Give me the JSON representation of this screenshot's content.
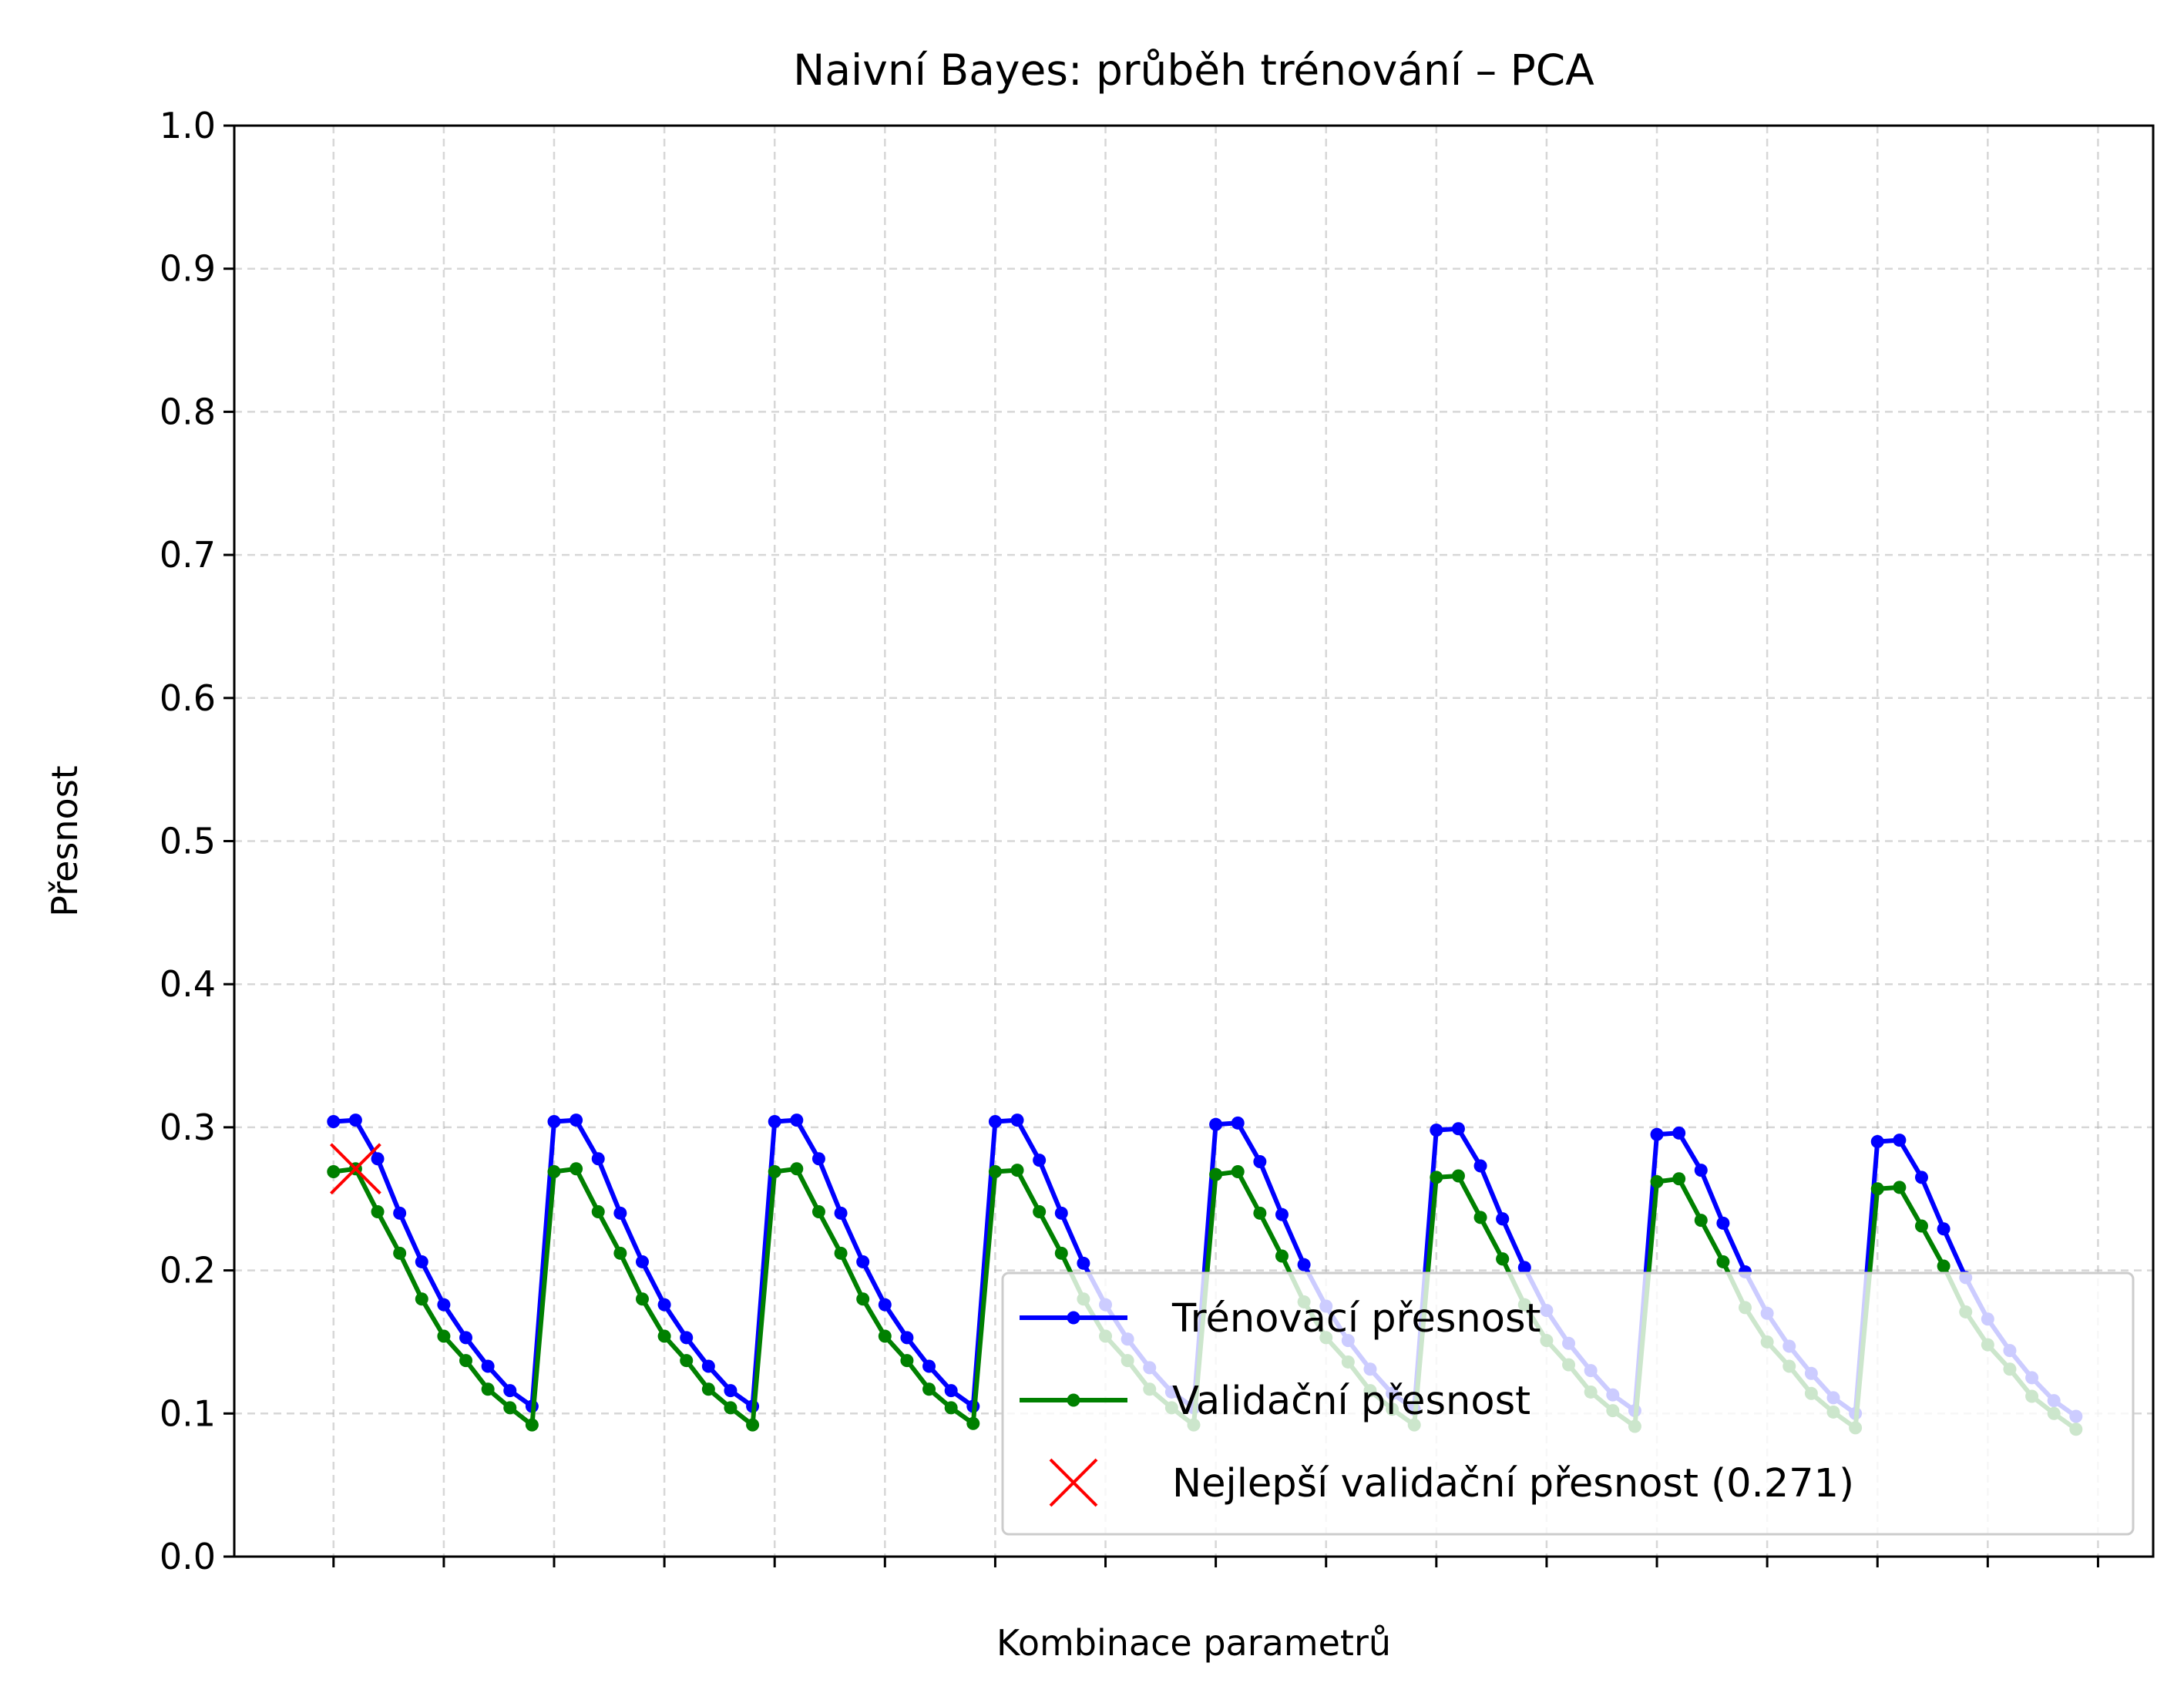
{
  "chart_data": {
    "type": "line",
    "title": "Naivní Bayes: průběh trénování – PCA",
    "xlabel": "Kombinace parametrů",
    "ylabel": "Přesnost",
    "ylim": [
      0.0,
      1.0
    ],
    "yticks": [
      "0.0",
      "0.1",
      "0.2",
      "0.3",
      "0.4",
      "0.5",
      "0.6",
      "0.7",
      "0.8",
      "0.9",
      "1.0"
    ],
    "grid": true,
    "legend_placement": "lower-right",
    "x": [
      0,
      1,
      2,
      3,
      4,
      5,
      6,
      7,
      8,
      9,
      10,
      11,
      12,
      13,
      14,
      15,
      16,
      17,
      18,
      19,
      20,
      21,
      22,
      23,
      24,
      25,
      26,
      27,
      28,
      29,
      30,
      31,
      32,
      33,
      34,
      35,
      36,
      37,
      38,
      39,
      40,
      41,
      42,
      43,
      44,
      45,
      46,
      47,
      48,
      49,
      50,
      51,
      52,
      53,
      53,
      54,
      55,
      56,
      57,
      58,
      59,
      60,
      61,
      62,
      63,
      64,
      65,
      66,
      67,
      68,
      69,
      70,
      71,
      72,
      73,
      74,
      75,
      76,
      77,
      78,
      79
    ],
    "series": [
      {
        "name": "Trénovací přesnost",
        "color": "#0000ff",
        "values": [
          0.304,
          0.305,
          0.278,
          0.24,
          0.206,
          0.176,
          0.153,
          0.133,
          0.116,
          0.105,
          0.304,
          0.305,
          0.278,
          0.24,
          0.206,
          0.176,
          0.153,
          0.133,
          0.116,
          0.105,
          0.304,
          0.305,
          0.278,
          0.24,
          0.206,
          0.176,
          0.153,
          0.133,
          0.116,
          0.105,
          0.304,
          0.305,
          0.277,
          0.24,
          0.205,
          0.176,
          0.152,
          0.132,
          0.115,
          0.104,
          0.302,
          0.303,
          0.276,
          0.239,
          0.204,
          0.175,
          0.151,
          0.131,
          0.114,
          0.103,
          0.298,
          0.299,
          0.273,
          0.236,
          0.236,
          0.202,
          0.172,
          0.149,
          0.13,
          0.113,
          0.102,
          0.295,
          0.296,
          0.27,
          0.233,
          0.199,
          0.17,
          0.147,
          0.128,
          0.111,
          0.1,
          0.29,
          0.291,
          0.265,
          0.229,
          0.195,
          0.166,
          0.144,
          0.125,
          0.109,
          0.098
        ]
      },
      {
        "name": "Validační přesnost",
        "color": "#008000",
        "values": [
          0.269,
          0.271,
          0.241,
          0.212,
          0.18,
          0.154,
          0.137,
          0.117,
          0.104,
          0.092,
          0.269,
          0.271,
          0.241,
          0.212,
          0.18,
          0.154,
          0.137,
          0.117,
          0.104,
          0.092,
          0.269,
          0.271,
          0.241,
          0.212,
          0.18,
          0.154,
          0.137,
          0.117,
          0.104,
          0.093,
          0.269,
          0.27,
          0.241,
          0.212,
          0.18,
          0.154,
          0.137,
          0.117,
          0.104,
          0.092,
          0.267,
          0.269,
          0.24,
          0.21,
          0.178,
          0.153,
          0.136,
          0.116,
          0.103,
          0.092,
          0.265,
          0.266,
          0.237,
          0.208,
          0.208,
          0.176,
          0.151,
          0.134,
          0.115,
          0.102,
          0.091,
          0.262,
          0.264,
          0.235,
          0.206,
          0.174,
          0.15,
          0.133,
          0.114,
          0.101,
          0.09,
          0.257,
          0.258,
          0.231,
          0.203,
          0.171,
          0.148,
          0.131,
          0.112,
          0.1,
          0.089
        ]
      }
    ],
    "best_marker": {
      "label": "Nejlepší validační přesnost (0.271)",
      "x": 1,
      "y": 0.271,
      "color": "#ff0000"
    }
  }
}
